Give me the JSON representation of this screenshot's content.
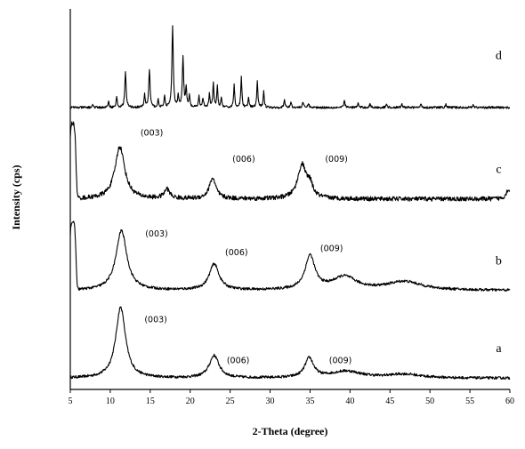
{
  "chart_data": {
    "type": "line",
    "title": "",
    "xlabel": "2-Theta (degree)",
    "ylabel": "Intensity (cps)",
    "xlim": [
      5,
      60
    ],
    "x_ticks": [
      5,
      10,
      15,
      20,
      25,
      30,
      35,
      40,
      45,
      50,
      55,
      60
    ],
    "x_tick_labels": [
      "5",
      "10",
      "15",
      "20",
      "25",
      "30",
      "35",
      "40",
      "45",
      "50",
      "55",
      "60"
    ],
    "y_ticks": false,
    "grid": false,
    "legend": "none",
    "ylim": [
      0,
      100
    ],
    "series": [
      {
        "name": "a",
        "baseline": 3,
        "noise": 0.35,
        "peaks": [
          {
            "center": 11.3,
            "height": 19,
            "width": 0.9
          },
          {
            "center": 23.0,
            "height": 6.0,
            "width": 0.9
          },
          {
            "center": 34.9,
            "height": 5.2,
            "width": 0.8
          },
          {
            "center": 39.5,
            "height": 1.8,
            "width": 2.8
          },
          {
            "center": 46.8,
            "height": 1.0,
            "width": 3.0
          }
        ],
        "curve_label": "a",
        "peak_labels": [
          {
            "x": 15.7,
            "y": 18,
            "text": "(003)"
          },
          {
            "x": 26.0,
            "y": 7,
            "text": "(006)"
          },
          {
            "x": 38.8,
            "y": 7,
            "text": "(009)"
          }
        ]
      },
      {
        "name": "b",
        "baseline": 26.5,
        "noise": 0.35,
        "low_angle_rise": 18,
        "peaks": [
          {
            "center": 11.4,
            "height": 16,
            "width": 1.0
          },
          {
            "center": 23.0,
            "height": 7.0,
            "width": 0.9
          },
          {
            "center": 35.0,
            "height": 9.0,
            "width": 0.9
          },
          {
            "center": 39.3,
            "height": 3.5,
            "width": 2.2
          },
          {
            "center": 46.8,
            "height": 2.3,
            "width": 3.2
          }
        ],
        "curve_label": "b",
        "peak_labels": [
          {
            "x": 15.8,
            "y": 41,
            "text": "(003)"
          },
          {
            "x": 25.8,
            "y": 36,
            "text": "(006)"
          },
          {
            "x": 37.7,
            "y": 37,
            "text": "(009)"
          }
        ]
      },
      {
        "name": "c",
        "baseline": 51,
        "noise": 0.6,
        "low_angle_rise": 20,
        "peaks": [
          {
            "center": 11.2,
            "height": 14,
            "width": 0.9
          },
          {
            "center": 17.1,
            "height": 2.5,
            "width": 0.5
          },
          {
            "center": 22.8,
            "height": 5.5,
            "width": 0.6
          },
          {
            "center": 34.0,
            "height": 9.0,
            "width": 0.8
          },
          {
            "center": 35.0,
            "height": 3.0,
            "width": 0.5
          },
          {
            "center": 59.8,
            "height": 2.5,
            "width": 0.4
          }
        ],
        "curve_label": "c",
        "peak_labels": [
          {
            "x": 15.2,
            "y": 68,
            "text": "(003)"
          },
          {
            "x": 26.7,
            "y": 61,
            "text": "(006)"
          },
          {
            "x": 38.3,
            "y": 61,
            "text": "(009)"
          }
        ]
      },
      {
        "name": "d",
        "baseline": 75.5,
        "noise": 0.3,
        "peaks": [
          {
            "center": 7.8,
            "height": 0.8,
            "width": 0.1
          },
          {
            "center": 9.8,
            "height": 1.5,
            "width": 0.1
          },
          {
            "center": 10.8,
            "height": 2.8,
            "width": 0.1
          },
          {
            "center": 11.9,
            "height": 9.5,
            "width": 0.12
          },
          {
            "center": 14.3,
            "height": 3.5,
            "width": 0.1
          },
          {
            "center": 14.9,
            "height": 10.0,
            "width": 0.12
          },
          {
            "center": 16.0,
            "height": 2.0,
            "width": 0.1
          },
          {
            "center": 16.8,
            "height": 2.8,
            "width": 0.1
          },
          {
            "center": 17.8,
            "height": 22.0,
            "width": 0.12
          },
          {
            "center": 18.5,
            "height": 3.0,
            "width": 0.1
          },
          {
            "center": 19.1,
            "height": 13.5,
            "width": 0.12
          },
          {
            "center": 19.5,
            "height": 5.0,
            "width": 0.1
          },
          {
            "center": 19.9,
            "height": 3.0,
            "width": 0.1
          },
          {
            "center": 21.1,
            "height": 3.0,
            "width": 0.1
          },
          {
            "center": 21.6,
            "height": 2.5,
            "width": 0.1
          },
          {
            "center": 22.4,
            "height": 3.5,
            "width": 0.1
          },
          {
            "center": 22.9,
            "height": 6.5,
            "width": 0.1
          },
          {
            "center": 23.4,
            "height": 5.5,
            "width": 0.1
          },
          {
            "center": 23.9,
            "height": 2.5,
            "width": 0.1
          },
          {
            "center": 25.5,
            "height": 6.0,
            "width": 0.1
          },
          {
            "center": 26.4,
            "height": 8.0,
            "width": 0.1
          },
          {
            "center": 27.3,
            "height": 2.5,
            "width": 0.1
          },
          {
            "center": 28.4,
            "height": 7.0,
            "width": 0.1
          },
          {
            "center": 29.2,
            "height": 4.5,
            "width": 0.1
          },
          {
            "center": 31.8,
            "height": 2.0,
            "width": 0.1
          },
          {
            "center": 32.6,
            "height": 1.5,
            "width": 0.1
          },
          {
            "center": 34.1,
            "height": 1.5,
            "width": 0.1
          },
          {
            "center": 34.8,
            "height": 1.2,
            "width": 0.1
          },
          {
            "center": 39.3,
            "height": 2.0,
            "width": 0.1
          },
          {
            "center": 41.0,
            "height": 1.2,
            "width": 0.1
          },
          {
            "center": 42.5,
            "height": 1.0,
            "width": 0.1
          },
          {
            "center": 44.6,
            "height": 1.0,
            "width": 0.1
          },
          {
            "center": 46.5,
            "height": 1.0,
            "width": 0.1
          },
          {
            "center": 48.9,
            "height": 1.0,
            "width": 0.1
          },
          {
            "center": 52.0,
            "height": 0.8,
            "width": 0.1
          },
          {
            "center": 55.4,
            "height": 0.8,
            "width": 0.1
          }
        ],
        "curve_label": "d",
        "peak_labels": []
      }
    ]
  }
}
